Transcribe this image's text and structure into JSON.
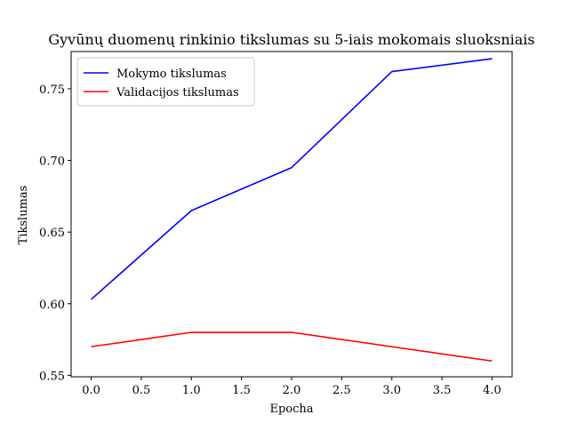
{
  "chart_data": {
    "type": "line",
    "title": "Gyvūnų duomenų rinkinio tikslumas su 5-iais mokomais sluoksniais",
    "xlabel": "Epocha",
    "ylabel": "Tikslumas",
    "x": [
      0,
      1,
      2,
      3,
      4
    ],
    "xlim": [
      -0.2,
      4.2
    ],
    "ylim": [
      0.549,
      0.776
    ],
    "xticks": [
      0.0,
      0.5,
      1.0,
      1.5,
      2.0,
      2.5,
      3.0,
      3.5,
      4.0
    ],
    "xtick_labels": [
      "0.0",
      "0.5",
      "1.0",
      "1.5",
      "2.0",
      "2.5",
      "3.0",
      "3.5",
      "4.0"
    ],
    "yticks": [
      0.55,
      0.6,
      0.65,
      0.7,
      0.75
    ],
    "ytick_labels": [
      "0.55",
      "0.60",
      "0.65",
      "0.70",
      "0.75"
    ],
    "grid": false,
    "legend_position": "top-left",
    "series": [
      {
        "name": "Mokymo tikslumas",
        "color": "#0000ff",
        "values": [
          0.603,
          0.665,
          0.695,
          0.762,
          0.771
        ]
      },
      {
        "name": "Validacijos tikslumas",
        "color": "#ff0000",
        "values": [
          0.57,
          0.58,
          0.58,
          0.57,
          0.56
        ]
      }
    ]
  }
}
